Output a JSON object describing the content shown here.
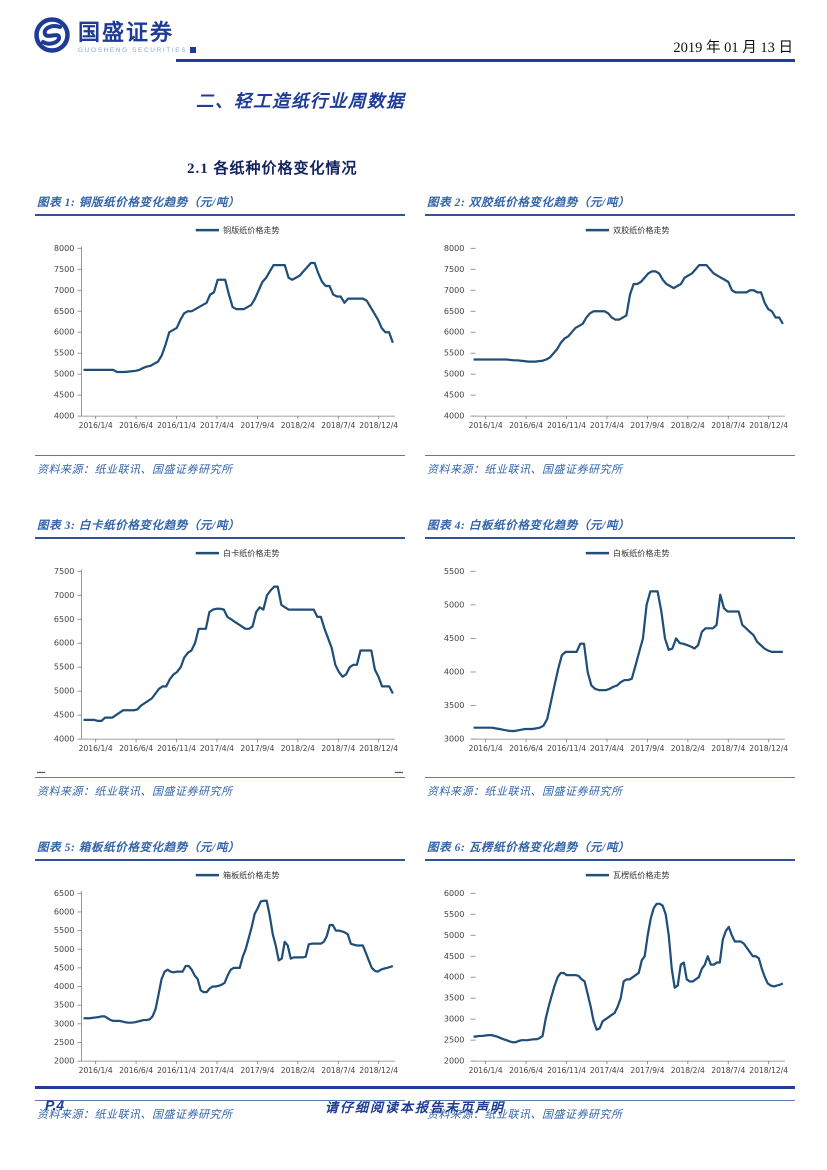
{
  "header": {
    "brand": "国盛证券",
    "brand_en": "GUOSHENG SECURITIES",
    "date": "2019 年 01 月 13 日"
  },
  "section_title": "二、轻工造纸行业周数据",
  "subsection_title": "2.1 各纸种价格变化情况",
  "footer": {
    "page": "P.4",
    "disclaimer": "请仔细阅读本报告末页声明"
  },
  "colors": {
    "accent": "#1f3e96",
    "line": "#1f4e79",
    "caption": "#3465a8"
  },
  "x_labels_shared": [
    "2016/1/4",
    "2016/6/4",
    "2016/11/4",
    "2017/4/4",
    "2017/9/4",
    "2018/2/4",
    "2018/7/4",
    "2018/12/4"
  ],
  "figures": [
    {
      "caption": "图表 1:  铜版纸价格变化趋势（元/吨）",
      "source": "资料来源：纸业联讯、国盛证券研究所",
      "chart_data": {
        "type": "line",
        "legend": "铜版纸价格走势",
        "ylim": [
          4000,
          8000
        ],
        "ystep": 500,
        "y_axis_line": true,
        "grid": false,
        "legend_position": "top",
        "x_labels": [
          "2016/1/4",
          "2016/6/4",
          "2016/11/4",
          "2017/4/4",
          "2017/9/4",
          "2018/2/4",
          "2018/7/4",
          "2018/12/4"
        ],
        "values": [
          5100,
          5100,
          5100,
          5100,
          5100,
          5100,
          5100,
          5100,
          5100,
          5050,
          5050,
          5050,
          5060,
          5070,
          5080,
          5100,
          5150,
          5180,
          5200,
          5250,
          5300,
          5450,
          5700,
          6000,
          6050,
          6100,
          6300,
          6450,
          6500,
          6500,
          6550,
          6600,
          6650,
          6700,
          6900,
          6950,
          7250,
          7250,
          7250,
          6900,
          6600,
          6550,
          6550,
          6550,
          6600,
          6650,
          6800,
          7000,
          7200,
          7300,
          7450,
          7600,
          7600,
          7600,
          7600,
          7300,
          7250,
          7300,
          7350,
          7450,
          7550,
          7650,
          7650,
          7400,
          7200,
          7100,
          7100,
          6900,
          6850,
          6850,
          6700,
          6800,
          6800,
          6800,
          6800,
          6800,
          6750,
          6600,
          6450,
          6300,
          6100,
          6000,
          6000,
          5750
        ]
      }
    },
    {
      "caption": "图表 2:  双胶纸价格变化趋势（元/吨）",
      "source": "资料来源：纸业联讯、国盛证券研究所",
      "chart_data": {
        "type": "line",
        "legend": "双胶纸价格走势",
        "ylim": [
          4000,
          8000
        ],
        "ystep": 500,
        "y_axis_line": false,
        "grid": false,
        "legend_position": "top",
        "x_labels": [
          "2016/1/4",
          "2016/6/4",
          "2016/11/4",
          "2017/4/4",
          "2017/9/4",
          "2018/2/4",
          "2018/7/4",
          "2018/12/4"
        ],
        "values": [
          5350,
          5350,
          5350,
          5350,
          5350,
          5350,
          5350,
          5350,
          5350,
          5350,
          5340,
          5330,
          5330,
          5320,
          5310,
          5300,
          5300,
          5300,
          5310,
          5320,
          5350,
          5400,
          5500,
          5600,
          5750,
          5850,
          5900,
          6000,
          6100,
          6150,
          6200,
          6350,
          6450,
          6500,
          6500,
          6500,
          6500,
          6450,
          6350,
          6300,
          6300,
          6350,
          6400,
          6900,
          7150,
          7150,
          7200,
          7300,
          7400,
          7450,
          7450,
          7400,
          7250,
          7150,
          7100,
          7050,
          7100,
          7150,
          7300,
          7350,
          7400,
          7500,
          7600,
          7600,
          7600,
          7500,
          7400,
          7350,
          7300,
          7250,
          7200,
          7000,
          6950,
          6950,
          6950,
          6950,
          7000,
          7000,
          6950,
          6950,
          6700,
          6550,
          6500,
          6350,
          6350,
          6200
        ]
      }
    },
    {
      "caption": "图表 3:  白卡纸价格变化趋势（元/吨）",
      "source": "资料来源：纸业联讯、国盛证券研究所",
      "chart_data": {
        "type": "line",
        "legend": "白卡纸价格走势",
        "ylim": [
          4000,
          7500
        ],
        "ystep": 500,
        "y_axis_line": true,
        "edge_dashes": true,
        "grid": false,
        "legend_position": "top",
        "x_labels": [
          "2016/1/4",
          "2016/6/4",
          "2016/11/4",
          "2017/4/4",
          "2017/9/4",
          "2018/2/4",
          "2018/7/4",
          "2018/12/4"
        ],
        "values": [
          4400,
          4400,
          4400,
          4400,
          4380,
          4380,
          4450,
          4450,
          4450,
          4500,
          4550,
          4600,
          4600,
          4600,
          4600,
          4620,
          4700,
          4750,
          4800,
          4850,
          4950,
          5050,
          5100,
          5100,
          5250,
          5350,
          5400,
          5500,
          5700,
          5800,
          5850,
          6000,
          6300,
          6300,
          6300,
          6650,
          6700,
          6720,
          6720,
          6700,
          6550,
          6500,
          6450,
          6400,
          6350,
          6300,
          6300,
          6350,
          6650,
          6750,
          6700,
          7000,
          7100,
          7180,
          7180,
          6800,
          6750,
          6700,
          6700,
          6700,
          6700,
          6700,
          6700,
          6700,
          6700,
          6550,
          6550,
          6300,
          6100,
          5900,
          5550,
          5400,
          5300,
          5350,
          5500,
          5550,
          5550,
          5850,
          5850,
          5850,
          5850,
          5450,
          5300,
          5100,
          5100,
          5100,
          4950
        ]
      }
    },
    {
      "caption": "图表 4:  白板纸价格变化趋势（元/吨）",
      "source": "资料来源：纸业联讯、国盛证券研究所",
      "chart_data": {
        "type": "line",
        "legend": "白板纸价格走势",
        "ylim": [
          3000,
          5500
        ],
        "ystep": 500,
        "y_axis_line": false,
        "grid": false,
        "legend_position": "top",
        "x_labels": [
          "2016/1/4",
          "2016/6/4",
          "2016/11/4",
          "2017/4/4",
          "2017/9/4",
          "2018/2/4",
          "2018/7/4",
          "2018/12/4"
        ],
        "values": [
          3170,
          3170,
          3170,
          3170,
          3170,
          3170,
          3160,
          3150,
          3140,
          3130,
          3120,
          3120,
          3130,
          3140,
          3150,
          3150,
          3150,
          3160,
          3170,
          3200,
          3300,
          3550,
          3800,
          4050,
          4250,
          4300,
          4300,
          4300,
          4300,
          4420,
          4420,
          4000,
          3800,
          3750,
          3730,
          3730,
          3730,
          3750,
          3780,
          3800,
          3850,
          3880,
          3880,
          3900,
          4100,
          4300,
          4500,
          5000,
          5200,
          5200,
          5200,
          4900,
          4500,
          4330,
          4350,
          4500,
          4430,
          4420,
          4400,
          4380,
          4350,
          4400,
          4600,
          4650,
          4650,
          4650,
          4700,
          5150,
          4950,
          4900,
          4900,
          4900,
          4900,
          4700,
          4650,
          4600,
          4550,
          4450,
          4400,
          4350,
          4320,
          4300,
          4300,
          4300,
          4300
        ]
      }
    },
    {
      "caption": "图表 5:  箱板纸价格变化趋势（元/吨）",
      "source": "资料来源：纸业联讯、国盛证券研究所",
      "chart_data": {
        "type": "line",
        "legend": "箱板纸价格走势",
        "ylim": [
          2000,
          6500
        ],
        "ystep": 500,
        "y_axis_line": true,
        "grid": false,
        "legend_position": "top",
        "x_labels": [
          "2016/1/4",
          "2016/6/4",
          "2016/11/4",
          "2017/4/4",
          "2017/9/4",
          "2018/2/4",
          "2018/7/4",
          "2018/12/4"
        ],
        "values": [
          3150,
          3150,
          3150,
          3160,
          3170,
          3180,
          3200,
          3200,
          3150,
          3100,
          3080,
          3080,
          3080,
          3060,
          3040,
          3030,
          3030,
          3040,
          3060,
          3080,
          3100,
          3100,
          3120,
          3200,
          3400,
          3800,
          4200,
          4400,
          4450,
          4400,
          4380,
          4400,
          4400,
          4400,
          4550,
          4550,
          4450,
          4300,
          4200,
          3900,
          3850,
          3850,
          3950,
          4000,
          4000,
          4020,
          4050,
          4100,
          4300,
          4450,
          4500,
          4500,
          4500,
          4800,
          5000,
          5300,
          5600,
          5950,
          6100,
          6280,
          6300,
          6300,
          5900,
          5400,
          5100,
          4700,
          4750,
          5200,
          5100,
          4750,
          4780,
          4780,
          4780,
          4780,
          4800,
          5130,
          5150,
          5150,
          5150,
          5150,
          5200,
          5350,
          5650,
          5650,
          5500,
          5500,
          5480,
          5450,
          5400,
          5150,
          5120,
          5100,
          5100,
          5100,
          4900,
          4700,
          4500,
          4420,
          4400,
          4450,
          4480,
          4500,
          4520,
          4550
        ]
      }
    },
    {
      "caption": "图表 6:  瓦楞纸价格变化趋势（元/吨）",
      "source": "资料来源：纸业联讯、国盛证券研究所",
      "chart_data": {
        "type": "line",
        "legend": "瓦楞纸价格走势",
        "ylim": [
          2000,
          6000
        ],
        "ystep": 500,
        "y_axis_line": false,
        "grid": false,
        "legend_position": "top",
        "x_labels": [
          "2016/1/4",
          "2016/6/4",
          "2016/11/4",
          "2017/4/4",
          "2017/9/4",
          "2018/2/4",
          "2018/7/4",
          "2018/12/4"
        ],
        "values": [
          2580,
          2590,
          2600,
          2600,
          2610,
          2620,
          2620,
          2600,
          2580,
          2550,
          2520,
          2500,
          2470,
          2450,
          2450,
          2480,
          2500,
          2500,
          2500,
          2510,
          2520,
          2520,
          2550,
          2600,
          3000,
          3300,
          3550,
          3800,
          4000,
          4100,
          4100,
          4050,
          4050,
          4050,
          4050,
          4030,
          3950,
          3900,
          3600,
          3300,
          2950,
          2750,
          2780,
          2950,
          3000,
          3050,
          3100,
          3150,
          3300,
          3500,
          3900,
          3950,
          3950,
          4000,
          4050,
          4100,
          4400,
          4500,
          5000,
          5400,
          5650,
          5750,
          5750,
          5700,
          5500,
          5000,
          4200,
          3750,
          3800,
          4300,
          4350,
          3950,
          3900,
          3900,
          3950,
          4000,
          4200,
          4300,
          4500,
          4300,
          4300,
          4350,
          4350,
          4900,
          5100,
          5200,
          5000,
          4850,
          4850,
          4850,
          4800,
          4700,
          4600,
          4500,
          4500,
          4450,
          4200,
          4000,
          3850,
          3800,
          3780,
          3800,
          3820,
          3850
        ]
      }
    }
  ]
}
